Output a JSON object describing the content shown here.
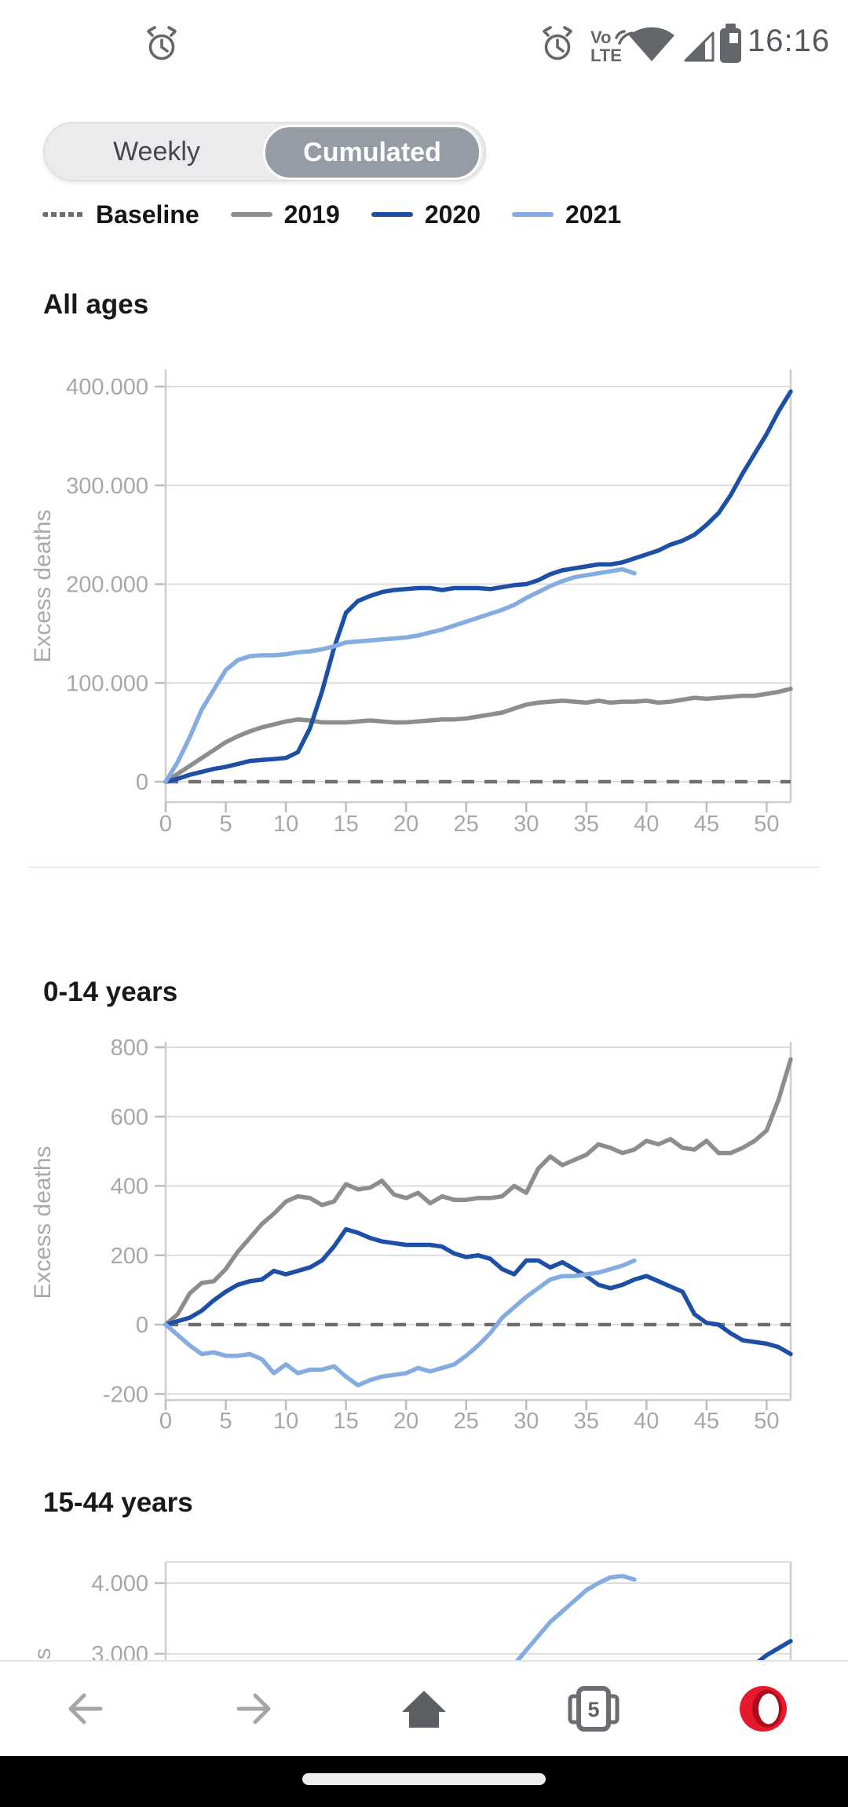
{
  "status_bar": {
    "time": "16:16",
    "volte_top": "Vo",
    "volte_bottom": "LTE"
  },
  "view_toggle": {
    "options": [
      {
        "label": "Weekly",
        "selected": false
      },
      {
        "label": "Cumulated",
        "selected": true
      }
    ]
  },
  "legend": {
    "items": [
      {
        "label": "Baseline",
        "color": "#6e6e6e",
        "line_style": "dashed"
      },
      {
        "label": "2019",
        "color": "#8d8d8d",
        "line_style": "solid"
      },
      {
        "label": "2020",
        "color": "#1e4fa6",
        "line_style": "solid"
      },
      {
        "label": "2021",
        "color": "#85ace0",
        "line_style": "solid"
      }
    ]
  },
  "chart_data": [
    {
      "type": "line",
      "title": "All ages",
      "ylabel": "Excess deaths",
      "x_unit": "week",
      "xlim": [
        0,
        52
      ],
      "ylim": [
        0,
        420000
      ],
      "grid": true,
      "xticks": [
        0,
        5,
        10,
        15,
        20,
        25,
        30,
        35,
        40,
        45,
        50
      ],
      "yticks": [
        {
          "v": 400000,
          "label": "400.000"
        },
        {
          "v": 300000,
          "label": "300.000"
        },
        {
          "v": 200000,
          "label": "200.000"
        },
        {
          "v": 100000,
          "label": "100.000"
        },
        {
          "v": 0,
          "label": "0"
        }
      ],
      "baseline": {
        "label": "Baseline",
        "value": 0
      },
      "series": [
        {
          "name": "2019",
          "color": "#8d8d8d",
          "start_week": 0,
          "values": [
            0,
            8000,
            16000,
            24000,
            32000,
            40000,
            46000,
            51000,
            55000,
            58000,
            61000,
            63000,
            62000,
            60000,
            60000,
            60000,
            61000,
            62000,
            61000,
            60000,
            60000,
            61000,
            62000,
            63000,
            63000,
            64000,
            66000,
            68000,
            70000,
            74000,
            78000,
            80000,
            81000,
            82000,
            81000,
            80000,
            82000,
            80000,
            81000,
            81000,
            82000,
            80000,
            81000,
            83000,
            85000,
            84000,
            85000,
            86000,
            87000,
            87000,
            89000,
            91000,
            94000
          ]
        },
        {
          "name": "2020",
          "color": "#1e4fa6",
          "start_week": 0,
          "values": [
            0,
            3000,
            7000,
            10000,
            13000,
            15000,
            18000,
            21000,
            22000,
            23000,
            24000,
            30000,
            54000,
            91000,
            135000,
            171000,
            183000,
            188000,
            192000,
            194000,
            195000,
            196000,
            196000,
            194000,
            196000,
            196000,
            196000,
            195000,
            197000,
            199000,
            200000,
            204000,
            210000,
            214000,
            216000,
            218000,
            220000,
            220000,
            222000,
            226000,
            230000,
            234000,
            240000,
            244000,
            250000,
            260000,
            272000,
            290000,
            312000,
            332000,
            352000,
            375000,
            395000
          ]
        },
        {
          "name": "2021",
          "color": "#85ace0",
          "start_week": 0,
          "values": [
            0,
            20000,
            45000,
            73000,
            93000,
            113000,
            123000,
            127000,
            128000,
            128000,
            129000,
            131000,
            132000,
            134000,
            137000,
            141000,
            142000,
            143000,
            144000,
            145000,
            146000,
            148000,
            151000,
            154000,
            158000,
            162000,
            166000,
            170000,
            174000,
            179000,
            186000,
            192000,
            198000,
            203000,
            207000,
            209000,
            211000,
            213000,
            215000,
            211000
          ]
        }
      ]
    },
    {
      "type": "line",
      "title": "0-14 years",
      "ylabel": "Excess deaths",
      "x_unit": "week",
      "xlim": [
        0,
        52
      ],
      "ylim": [
        -230,
        810
      ],
      "grid": true,
      "xticks": [
        0,
        5,
        10,
        15,
        20,
        25,
        30,
        35,
        40,
        45,
        50
      ],
      "yticks": [
        {
          "v": 800,
          "label": "800"
        },
        {
          "v": 600,
          "label": "600"
        },
        {
          "v": 400,
          "label": "400"
        },
        {
          "v": 200,
          "label": "200"
        },
        {
          "v": 0,
          "label": "0"
        },
        {
          "v": -200,
          "label": "-200"
        }
      ],
      "baseline": {
        "label": "Baseline",
        "value": 0
      },
      "series": [
        {
          "name": "2019",
          "color": "#8d8d8d",
          "start_week": 0,
          "values": [
            0,
            30,
            90,
            120,
            125,
            160,
            210,
            250,
            290,
            320,
            355,
            370,
            365,
            345,
            355,
            405,
            390,
            395,
            415,
            375,
            365,
            380,
            350,
            370,
            360,
            360,
            365,
            365,
            370,
            400,
            380,
            450,
            485,
            460,
            475,
            490,
            520,
            510,
            495,
            505,
            530,
            520,
            535,
            510,
            505,
            530,
            495,
            495,
            510,
            530,
            560,
            650,
            765
          ]
        },
        {
          "name": "2020",
          "color": "#1e4fa6",
          "start_week": 0,
          "values": [
            0,
            10,
            20,
            40,
            70,
            95,
            115,
            125,
            130,
            155,
            145,
            155,
            165,
            185,
            225,
            275,
            265,
            250,
            240,
            235,
            230,
            230,
            230,
            225,
            205,
            195,
            200,
            190,
            160,
            145,
            185,
            185,
            165,
            180,
            160,
            140,
            115,
            105,
            115,
            130,
            140,
            125,
            110,
            95,
            30,
            5,
            0,
            -25,
            -45,
            -50,
            -55,
            -65,
            -85
          ]
        },
        {
          "name": "2021",
          "color": "#85ace0",
          "start_week": 0,
          "values": [
            0,
            -30,
            -60,
            -85,
            -80,
            -90,
            -90,
            -85,
            -100,
            -140,
            -115,
            -140,
            -130,
            -130,
            -120,
            -150,
            -175,
            -160,
            -150,
            -145,
            -140,
            -125,
            -135,
            -125,
            -115,
            -90,
            -60,
            -25,
            20,
            50,
            80,
            105,
            130,
            140,
            140,
            145,
            150,
            160,
            170,
            185
          ]
        }
      ]
    },
    {
      "type": "line",
      "title": "15-44 years",
      "ylabel": "Excess deaths",
      "x_unit": "week",
      "xlim": [
        0,
        52
      ],
      "ylim": [
        3000,
        4300
      ],
      "grid": true,
      "visible_portion_only": true,
      "xticks": [],
      "yticks": [
        {
          "v": 4000,
          "label": "4.000"
        },
        {
          "v": 3000,
          "label": "3.000"
        }
      ],
      "series": [
        {
          "name": "2021",
          "color": "#85ace0",
          "start_week": 29,
          "values": [
            2850,
            3050,
            3250,
            3450,
            3600,
            3750,
            3900,
            4000,
            4080,
            4100,
            4050
          ]
        },
        {
          "name": "2020",
          "color": "#1e4fa6",
          "start_week": 48,
          "values": [
            2700,
            2850,
            2980,
            3080,
            3180
          ]
        }
      ]
    }
  ],
  "toolbar": {
    "tab_count": "5"
  }
}
